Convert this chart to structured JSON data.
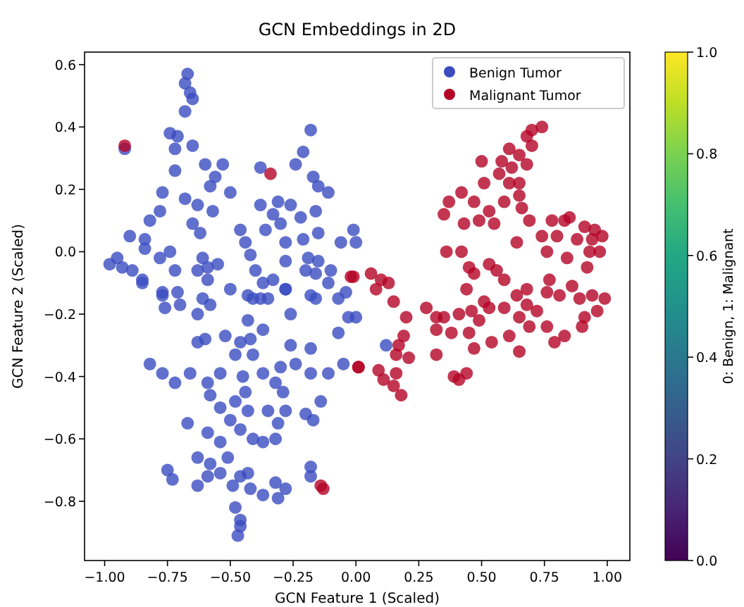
{
  "chart_data": {
    "type": "scatter",
    "title": "GCN Embeddings in 2D",
    "xlabel": "GCN Feature 1 (Scaled)",
    "ylabel": "GCN Feature 2 (Scaled)",
    "clabel": "0: Benign, 1: Malignant",
    "xlim": [
      -1.08,
      1.09
    ],
    "ylim": [
      -0.99,
      0.64
    ],
    "xticks": [
      {
        "value": -1,
        "label": "−1.00"
      },
      {
        "value": -0.75,
        "label": "−0.75"
      },
      {
        "value": -0.5,
        "label": "−0.50"
      },
      {
        "value": -0.25,
        "label": "−0.25"
      },
      {
        "value": 0,
        "label": "0.00"
      },
      {
        "value": 0.25,
        "label": "0.25"
      },
      {
        "value": 0.5,
        "label": "0.50"
      },
      {
        "value": 0.75,
        "label": "0.75"
      },
      {
        "value": 1,
        "label": "1.00"
      }
    ],
    "yticks": [
      {
        "value": -0.8,
        "label": "−0.8"
      },
      {
        "value": -0.6,
        "label": "−0.6"
      },
      {
        "value": -0.4,
        "label": "−0.4"
      },
      {
        "value": -0.2,
        "label": "−0.2"
      },
      {
        "value": 0,
        "label": "0.0"
      },
      0.2,
      0.4,
      0.6
    ],
    "clim": [
      0,
      1
    ],
    "cticks": [
      {
        "value": 0,
        "label": "0.0"
      },
      0.2,
      0.4,
      0.6,
      0.8,
      {
        "value": 1,
        "label": "1.0"
      }
    ],
    "legend": "top right",
    "grid": false,
    "marker": "circle",
    "series": [
      {
        "name": "Benign Tumor",
        "color": "#3b4cc0",
        "x": [
          -0.67,
          -0.68,
          -0.66,
          -0.65,
          -0.68,
          -0.74,
          -0.71,
          -0.92,
          -0.72,
          -0.65,
          -0.6,
          -0.53,
          -0.38,
          -0.18,
          -0.21,
          -0.24,
          -0.17,
          -0.15,
          -0.11,
          -0.72,
          -0.56,
          -0.58,
          -0.5,
          -0.77,
          -0.68,
          -0.63,
          -0.57,
          -0.78,
          -0.82,
          -0.65,
          -0.62,
          -0.9,
          -0.84,
          -0.84,
          -0.95,
          -0.98,
          -0.93,
          -0.89,
          -0.85,
          -0.78,
          -0.74,
          -0.72,
          -0.61,
          -0.55,
          -0.59,
          -0.63,
          -0.59,
          -0.46,
          -0.44,
          -0.38,
          -0.31,
          -0.26,
          -0.33,
          -0.3,
          -0.22,
          -0.16,
          -0.36,
          -0.21,
          -0.15,
          -0.28,
          -0.28,
          -0.19,
          -0.15,
          -0.2,
          -0.16,
          -0.1,
          -0.06,
          -0.01,
          0.0,
          -0.42,
          -0.4,
          -0.37,
          -0.33,
          -0.43,
          -0.38,
          -0.77,
          -0.71,
          -0.61,
          -0.28,
          -0.18,
          -0.11,
          -0.04,
          -0.85,
          -0.77,
          -0.76,
          -0.7,
          -0.63,
          -0.58,
          -0.5,
          -0.41,
          -0.35,
          -0.28,
          -0.16,
          -0.07,
          -0.03,
          0.0,
          -0.43,
          -0.37,
          -0.42,
          -0.26,
          -0.52,
          -0.46,
          -0.63,
          -0.6,
          -0.07,
          -0.26,
          -0.18,
          -0.48,
          -0.41,
          -0.82,
          -0.77,
          -0.72,
          -0.66,
          -0.59,
          -0.54,
          -0.58,
          -0.45,
          -0.44,
          -0.37,
          -0.3,
          -0.24,
          -0.18,
          -0.32,
          -0.29,
          -0.11,
          -0.05,
          -0.14,
          -0.54,
          -0.48,
          -0.43,
          -0.35,
          -0.28,
          -0.2,
          -0.31,
          -0.17,
          -0.67,
          -0.5,
          -0.59,
          -0.54,
          -0.46,
          -0.41,
          -0.37,
          -0.32,
          -0.63,
          -0.58,
          -0.51,
          -0.75,
          -0.73,
          -0.63,
          -0.59,
          -0.54,
          -0.49,
          -0.46,
          -0.43,
          -0.42,
          -0.37,
          -0.32,
          -0.28,
          -0.31,
          -0.18,
          -0.18,
          -0.48,
          -0.46,
          -0.46,
          -0.47,
          0.12
        ],
        "values": [
          0.57,
          0.54,
          0.51,
          0.49,
          0.45,
          0.38,
          0.37,
          0.33,
          0.33,
          0.34,
          0.28,
          0.28,
          0.27,
          0.39,
          0.32,
          0.28,
          0.24,
          0.21,
          0.19,
          0.26,
          0.24,
          0.21,
          0.19,
          0.19,
          0.17,
          0.15,
          0.13,
          0.13,
          0.1,
          0.09,
          0.06,
          0.05,
          0.04,
          0.01,
          -0.02,
          -0.04,
          -0.05,
          -0.06,
          -0.09,
          -0.02,
          0.0,
          -0.06,
          -0.02,
          -0.04,
          -0.05,
          -0.06,
          -0.09,
          0.07,
          0.03,
          0.15,
          0.16,
          0.15,
          0.12,
          0.09,
          0.11,
          0.13,
          0.07,
          0.04,
          0.06,
          0.03,
          -0.03,
          -0.02,
          -0.03,
          -0.06,
          -0.07,
          -0.06,
          0.03,
          0.07,
          0.03,
          -0.01,
          -0.06,
          -0.1,
          -0.09,
          -0.14,
          -0.15,
          -0.14,
          -0.13,
          -0.15,
          -0.12,
          -0.14,
          -0.1,
          -0.13,
          -0.1,
          -0.13,
          -0.18,
          -0.17,
          -0.2,
          -0.17,
          -0.12,
          -0.15,
          -0.15,
          -0.12,
          -0.15,
          -0.15,
          -0.21,
          -0.21,
          -0.22,
          -0.25,
          -0.28,
          -0.2,
          -0.27,
          -0.29,
          -0.29,
          -0.28,
          -0.26,
          -0.3,
          -0.31,
          -0.33,
          -0.33,
          -0.36,
          -0.39,
          -0.42,
          -0.39,
          -0.42,
          -0.39,
          -0.46,
          -0.4,
          -0.45,
          -0.39,
          -0.37,
          -0.36,
          -0.39,
          -0.42,
          -0.45,
          -0.39,
          -0.36,
          -0.48,
          -0.5,
          -0.48,
          -0.51,
          -0.51,
          -0.51,
          -0.52,
          -0.55,
          -0.54,
          -0.55,
          -0.54,
          -0.58,
          -0.61,
          -0.57,
          -0.6,
          -0.61,
          -0.6,
          -0.66,
          -0.68,
          -0.66,
          -0.7,
          -0.73,
          -0.75,
          -0.72,
          -0.71,
          -0.75,
          -0.72,
          -0.71,
          -0.76,
          -0.78,
          -0.74,
          -0.76,
          -0.79,
          -0.69,
          -0.72,
          -0.82,
          -0.86,
          -0.88,
          -0.91,
          -0.3
        ]
      },
      {
        "name": "Malignant Tumor",
        "color": "#b40426",
        "x": [
          -0.92,
          -0.34,
          -0.02,
          -0.13,
          -0.14,
          0.01,
          0.7,
          0.74,
          0.68,
          0.7,
          0.65,
          0.61,
          0.58,
          0.5,
          0.68,
          0.57,
          0.62,
          0.61,
          0.65,
          0.51,
          0.42,
          0.37,
          0.47,
          0.35,
          0.43,
          0.49,
          0.53,
          0.59,
          0.65,
          0.66,
          0.69,
          0.55,
          0.78,
          0.83,
          0.85,
          0.91,
          0.95,
          0.98,
          0.74,
          0.8,
          0.88,
          0.94,
          0.64,
          0.76,
          0.84,
          0.93,
          0.97,
          0.36,
          0.42,
          0.92,
          0.45,
          0.47,
          0.53,
          0.56,
          0.59,
          0.77,
          0.44,
          0.64,
          0.68,
          0.76,
          0.86,
          0.81,
          0.89,
          0.94,
          0.99,
          0.96,
          0.91,
          0.9,
          0.68,
          0.72,
          0.65,
          0.69,
          0.76,
          0.79,
          0.83,
          0.59,
          0.51,
          0.46,
          0.41,
          0.35,
          0.28,
          0.32,
          0.49,
          0.53,
          0.61,
          0.65,
          0.54,
          0.45,
          0.47,
          0.44,
          0.41,
          0.39,
          0.32,
          0.38,
          0.2,
          0.19,
          0.17,
          0.16,
          0.21,
          0.32,
          0.15,
          0.06,
          0.1,
          0.08,
          0.13,
          -0.01,
          0.09,
          0.11,
          0.16,
          0.15,
          0.18,
          0.01
        ],
        "values": [
          0.34,
          0.25,
          -0.08,
          -0.76,
          -0.75,
          -0.37,
          0.39,
          0.4,
          0.37,
          0.34,
          0.31,
          0.33,
          0.29,
          0.29,
          0.28,
          0.25,
          0.27,
          0.22,
          0.22,
          0.22,
          0.19,
          0.16,
          0.16,
          0.12,
          0.09,
          0.1,
          0.13,
          0.16,
          0.18,
          0.14,
          0.1,
          0.09,
          0.1,
          0.1,
          0.11,
          0.08,
          0.07,
          0.05,
          0.05,
          0.05,
          0.04,
          0.04,
          0.03,
          0.0,
          -0.02,
          0.0,
          0.0,
          0.0,
          0.0,
          -0.05,
          -0.05,
          -0.07,
          -0.04,
          -0.06,
          -0.09,
          -0.09,
          -0.12,
          -0.14,
          -0.12,
          -0.13,
          -0.11,
          -0.14,
          -0.15,
          -0.14,
          -0.15,
          -0.19,
          -0.21,
          -0.24,
          -0.17,
          -0.19,
          -0.21,
          -0.24,
          -0.24,
          -0.29,
          -0.27,
          -0.18,
          -0.16,
          -0.19,
          -0.2,
          -0.21,
          -0.18,
          -0.21,
          -0.22,
          -0.18,
          -0.27,
          -0.32,
          -0.29,
          -0.26,
          -0.31,
          -0.39,
          -0.41,
          -0.4,
          -0.25,
          -0.26,
          -0.21,
          -0.27,
          -0.3,
          -0.33,
          -0.34,
          -0.33,
          -0.16,
          -0.07,
          -0.09,
          -0.12,
          -0.1,
          -0.08,
          -0.38,
          -0.41,
          -0.39,
          -0.43,
          -0.46,
          -0.37
        ]
      }
    ]
  }
}
